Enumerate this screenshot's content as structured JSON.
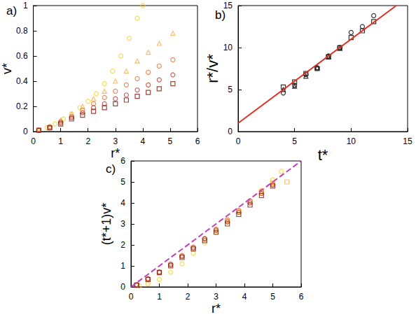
{
  "chart_data": [
    {
      "type": "scatter",
      "title": "a)",
      "x_label": "r*",
      "y_label": "v*",
      "xlim": [
        0,
        6
      ],
      "ylim": [
        0,
        1
      ],
      "xticks": [
        0,
        1,
        2,
        3,
        4,
        5,
        6
      ],
      "yticks": [
        0,
        0.2,
        0.4,
        0.6,
        0.8,
        1
      ],
      "series": [
        {
          "color": "#f5d22c",
          "marker": "circle",
          "x": [
            0.2,
            0.5,
            0.8,
            1.1,
            1.4,
            1.7,
            2.0,
            2.3,
            2.6,
            2.9,
            3.2,
            3.5,
            3.8,
            4.0
          ],
          "values": [
            0.01,
            0.03,
            0.06,
            0.1,
            0.14,
            0.19,
            0.24,
            0.3,
            0.38,
            0.48,
            0.6,
            0.74,
            0.9,
            1.0
          ]
        },
        {
          "color": "#f2b14c",
          "marker": "triangle",
          "x": [
            0.2,
            0.6,
            1.0,
            1.4,
            1.8,
            2.2,
            2.6,
            3.0,
            3.4,
            3.8,
            4.2,
            4.6,
            5.1
          ],
          "values": [
            0.01,
            0.04,
            0.09,
            0.14,
            0.2,
            0.26,
            0.32,
            0.4,
            0.48,
            0.56,
            0.63,
            0.7,
            0.78
          ]
        },
        {
          "color": "#e4703a",
          "marker": "circle",
          "x": [
            0.2,
            0.6,
            1.0,
            1.4,
            1.8,
            2.2,
            2.6,
            3.0,
            3.4,
            3.8,
            4.2,
            4.6,
            5.1
          ],
          "values": [
            0.01,
            0.04,
            0.08,
            0.12,
            0.17,
            0.22,
            0.27,
            0.32,
            0.37,
            0.42,
            0.47,
            0.52,
            0.57
          ]
        },
        {
          "color": "#c0392b",
          "marker": "circle",
          "x": [
            0.2,
            0.6,
            1.0,
            1.4,
            1.8,
            2.2,
            2.6,
            3.0,
            3.4,
            3.8,
            4.2,
            4.6,
            5.1
          ],
          "values": [
            0.01,
            0.03,
            0.07,
            0.11,
            0.15,
            0.19,
            0.22,
            0.26,
            0.29,
            0.33,
            0.37,
            0.41,
            0.45
          ]
        },
        {
          "color": "#7a1a10",
          "marker": "square",
          "x": [
            0.2,
            0.6,
            1.0,
            1.4,
            1.8,
            2.2,
            2.6,
            3.0,
            3.4,
            3.8,
            4.2,
            4.6,
            5.1
          ],
          "values": [
            0.01,
            0.03,
            0.06,
            0.1,
            0.13,
            0.16,
            0.19,
            0.22,
            0.25,
            0.28,
            0.31,
            0.34,
            0.38
          ]
        }
      ]
    },
    {
      "type": "scatter",
      "title": "b)",
      "x_label": "t*",
      "y_label": "r*/v*",
      "xlim": [
        0,
        15
      ],
      "ylim": [
        0,
        15
      ],
      "xticks": [
        0,
        5,
        10,
        15
      ],
      "yticks": [
        0,
        5,
        10,
        15
      ],
      "series": [
        {
          "color": "#000000",
          "marker": "circle",
          "x": [
            4,
            5,
            6,
            7,
            8,
            9,
            10,
            11,
            12
          ],
          "values": [
            4.6,
            5.5,
            6.8,
            7.6,
            9.0,
            10.0,
            11.8,
            12.5,
            13.8
          ]
        },
        {
          "color": "#000000",
          "marker": "triangle",
          "x": [
            4,
            5,
            6,
            7,
            8,
            9
          ],
          "values": [
            5.0,
            5.4,
            6.6,
            7.6,
            8.9,
            9.9
          ]
        },
        {
          "color": "#000000",
          "marker": "square",
          "x": [
            4,
            5,
            6,
            7,
            8,
            9,
            10,
            11,
            12
          ],
          "values": [
            5.3,
            5.9,
            6.9,
            7.5,
            8.9,
            10.0,
            11.2,
            12.0,
            13.1
          ]
        },
        {
          "type": "line",
          "color": "#e03020",
          "line_style": "solid",
          "x": [
            0,
            14
          ],
          "values": [
            1,
            15
          ]
        }
      ]
    },
    {
      "type": "scatter",
      "title": "c)",
      "x_label": "r*",
      "y_label": "(t*+1)v*",
      "xlim": [
        0,
        6
      ],
      "ylim": [
        0,
        6
      ],
      "xticks": [
        0,
        1,
        2,
        3,
        4,
        5,
        6
      ],
      "yticks": [
        0,
        1,
        2,
        3,
        4,
        5,
        6
      ],
      "series": [
        {
          "color": "#f5d22c",
          "marker": "circle",
          "x": [
            0.3,
            0.6,
            1.0,
            1.4,
            1.8,
            2.2,
            2.6,
            3.0,
            3.4,
            3.8,
            4.2,
            4.6,
            5.0,
            5.3
          ],
          "values": [
            0.05,
            0.15,
            0.35,
            0.7,
            1.1,
            1.6,
            2.1,
            2.6,
            3.1,
            3.6,
            4.1,
            4.6,
            5.1,
            5.5
          ]
        },
        {
          "color": "#f2b14c",
          "marker": "square",
          "x": [
            0.2,
            0.6,
            1.0,
            1.4,
            1.8,
            2.2,
            2.6,
            3.0,
            3.4,
            3.8,
            4.2,
            4.6,
            5.0,
            5.5
          ],
          "values": [
            0.1,
            0.35,
            0.7,
            1.05,
            1.45,
            1.85,
            2.25,
            2.7,
            3.15,
            3.6,
            4.05,
            4.5,
            4.95,
            5.0
          ]
        },
        {
          "color": "#e4703a",
          "marker": "circle",
          "x": [
            0.2,
            0.6,
            1.0,
            1.4,
            1.8,
            2.2,
            2.6,
            3.0,
            3.4,
            3.8,
            4.2,
            4.6,
            5.0
          ],
          "values": [
            0.1,
            0.4,
            0.72,
            1.1,
            1.5,
            1.9,
            2.3,
            2.75,
            3.2,
            3.65,
            4.1,
            4.55,
            4.9
          ]
        },
        {
          "color": "#c0392b",
          "marker": "circle",
          "x": [
            0.2,
            0.6,
            1.0,
            1.4,
            1.8,
            2.2,
            2.6,
            3.0,
            3.4,
            3.8,
            4.2,
            4.6,
            5.0
          ],
          "values": [
            0.1,
            0.38,
            0.7,
            1.05,
            1.45,
            1.85,
            2.3,
            2.7,
            3.1,
            3.55,
            4.0,
            4.45,
            4.85
          ]
        },
        {
          "color": "#7a1a10",
          "marker": "square",
          "x": [
            0.2,
            0.6,
            1.0,
            1.4,
            1.8,
            2.2,
            2.6,
            3.0,
            3.4,
            3.8,
            4.2,
            4.6,
            5.0
          ],
          "values": [
            0.08,
            0.35,
            0.68,
            1.0,
            1.4,
            1.8,
            2.2,
            2.6,
            3.0,
            3.45,
            3.9,
            4.35,
            4.8
          ]
        },
        {
          "type": "line",
          "color": "#c040c0",
          "line_style": "dashed",
          "x": [
            0,
            6
          ],
          "values": [
            0,
            6
          ]
        }
      ]
    }
  ]
}
